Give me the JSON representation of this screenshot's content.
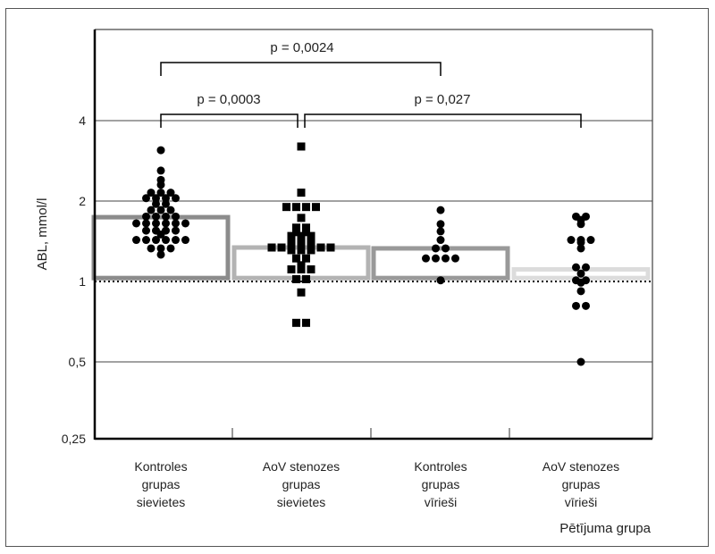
{
  "chart_data": {
    "type": "scatter",
    "subtype": "bar with individual points (beeswarm), log2 y-axis",
    "ylabel": "ABL, mmol/l",
    "xlabel": "Pētījuma grupa",
    "yscale": "log2",
    "ylim": [
      0.25,
      8.7
    ],
    "yticks": [
      0.25,
      0.5,
      1,
      2,
      4
    ],
    "ytick_labels": [
      "0,25",
      "0,5",
      "1",
      "2",
      "4"
    ],
    "reference_line": 1,
    "categories": [
      [
        "Kontroles",
        "grupas",
        "sievietes"
      ],
      [
        "AoV stenozes",
        "grupas",
        "sievietes"
      ],
      [
        "Kontroles",
        "grupas",
        "vīrieši"
      ],
      [
        "AoV stenozes",
        "grupas",
        "vīrieši"
      ]
    ],
    "bars": [
      1.74,
      1.34,
      1.33,
      1.11
    ],
    "bar_base": 1.03,
    "bar_colors": [
      "#8c8c8c",
      "#b3b3b3",
      "#999999",
      "#dcdcdc"
    ],
    "markers": [
      "circle",
      "square",
      "circle",
      "circle"
    ],
    "points": [
      [
        3.1,
        2.6,
        2.4,
        2.3,
        2.15,
        2.15,
        2.15,
        2.05,
        2.05,
        2.05,
        2.05,
        1.95,
        1.95,
        1.85,
        1.85,
        1.85,
        1.75,
        1.75,
        1.75,
        1.75,
        1.65,
        1.65,
        1.65,
        1.65,
        1.65,
        1.65,
        1.55,
        1.55,
        1.55,
        1.55,
        1.5,
        1.43,
        1.43,
        1.43,
        1.43,
        1.43,
        1.43,
        1.33,
        1.33,
        1.33,
        1.26
      ],
      [
        3.2,
        2.15,
        1.9,
        1.9,
        1.9,
        1.9,
        1.73,
        1.59,
        1.59,
        1.53,
        1.53,
        1.48,
        1.48,
        1.48,
        1.42,
        1.42,
        1.42,
        1.34,
        1.34,
        1.34,
        1.34,
        1.34,
        1.34,
        1.34,
        1.31,
        1.31,
        1.31,
        1.22,
        1.22,
        1.15,
        1.11,
        1.11,
        1.11,
        1.02,
        1.02,
        0.91,
        0.7,
        0.7
      ],
      [
        1.85,
        1.64,
        1.54,
        1.43,
        1.33,
        1.33,
        1.22,
        1.22,
        1.22,
        1.22,
        1.01
      ],
      [
        1.75,
        1.75,
        1.7,
        1.64,
        1.43,
        1.43,
        1.43,
        1.4,
        1.33,
        1.13,
        1.13,
        1.07,
        1.01,
        1.01,
        0.99,
        0.92,
        0.81,
        0.81,
        0.5
      ]
    ],
    "annotations": [
      {
        "text": "p = 0,0024",
        "from": 0,
        "to": 2
      },
      {
        "text": "p = 0,0003",
        "from": 0,
        "to": 1
      },
      {
        "text": "p = 0,027",
        "from": 1,
        "to": 3
      }
    ]
  }
}
